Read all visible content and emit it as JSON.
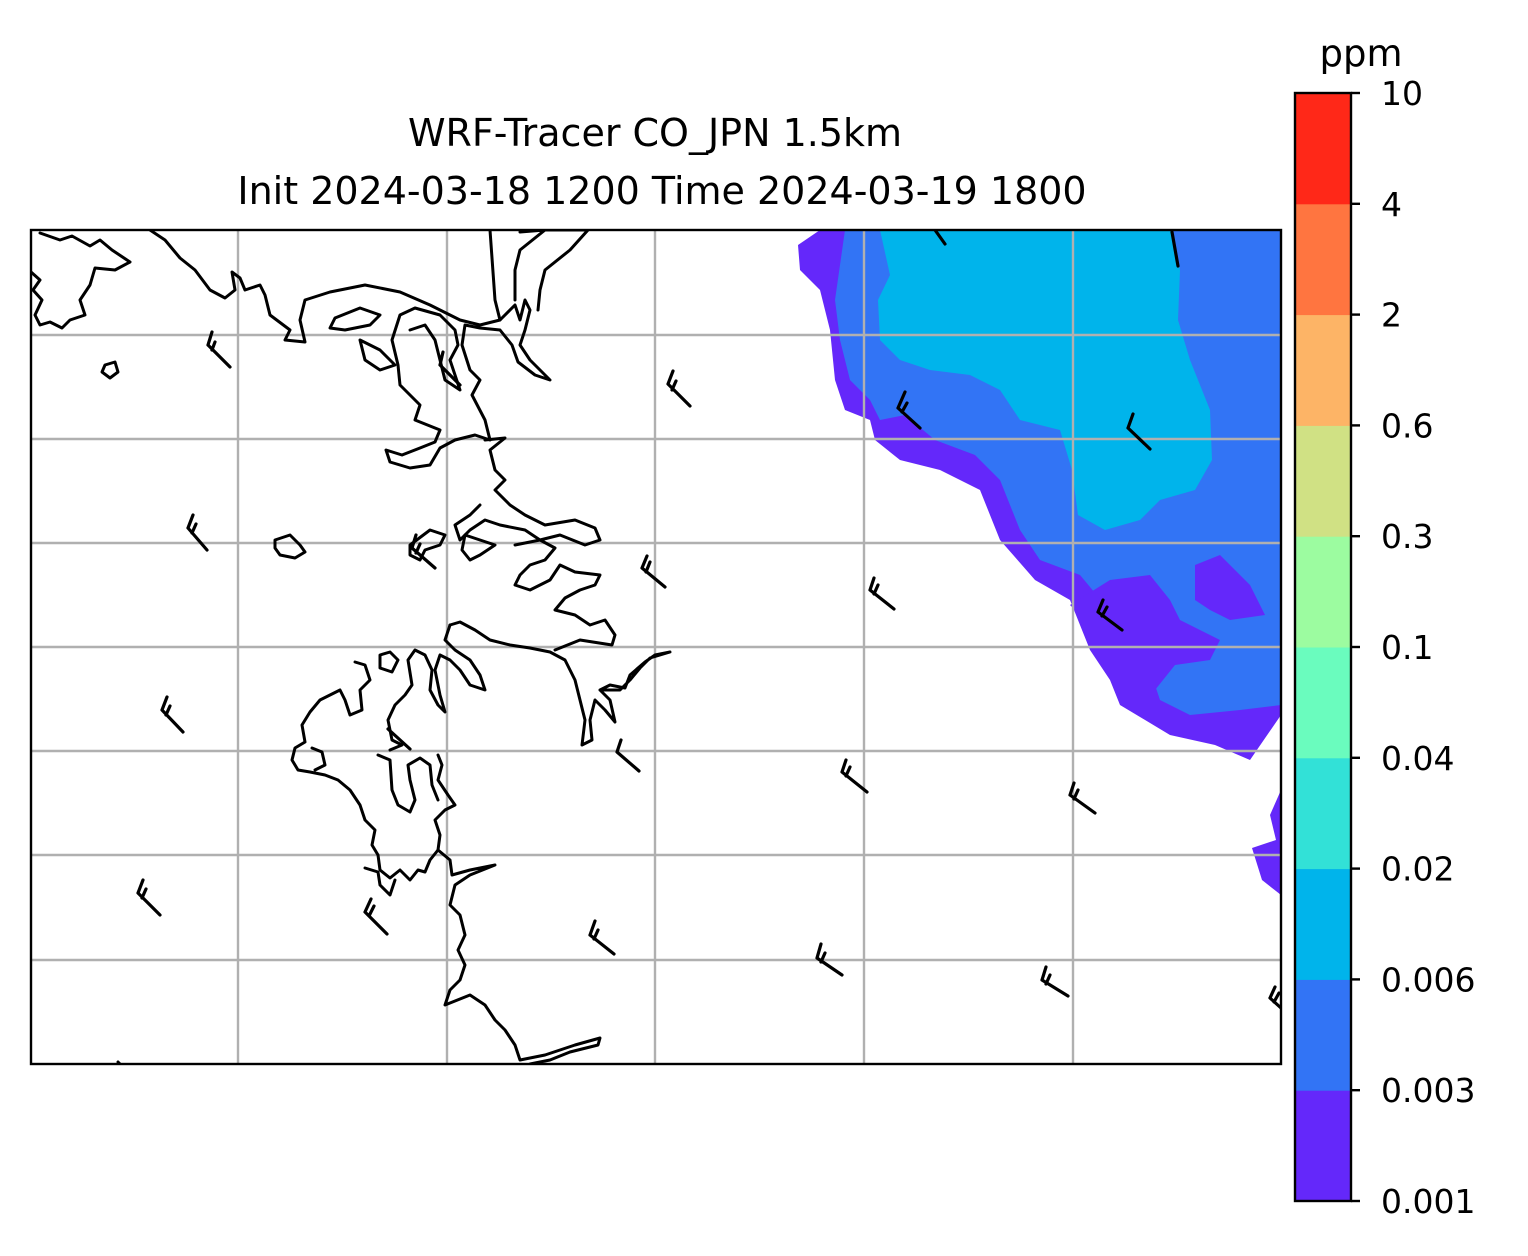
{
  "title": {
    "line1": "WRF-Tracer CO_JPN 1.5km",
    "line2": "Init 2024-03-18 1200 Time 2024-03-19 1800"
  },
  "colorbar": {
    "unit": "ppm",
    "levels": [
      "0.001",
      "0.003",
      "0.006",
      "0.02",
      "0.04",
      "0.1",
      "0.3",
      "0.6",
      "2",
      "4",
      "10"
    ],
    "colors": [
      "#6428fa",
      "#3274f5",
      "#00b4eb",
      "#32e1d7",
      "#6afcbe",
      "#9cfca0",
      "#d0e184",
      "#fdb466",
      "#ff7540",
      "#ff2818"
    ]
  },
  "map": {
    "gridlines": true,
    "grid_color": "#b0b0b0",
    "coastline_color": "#000000",
    "barb_color": "#000000"
  }
}
